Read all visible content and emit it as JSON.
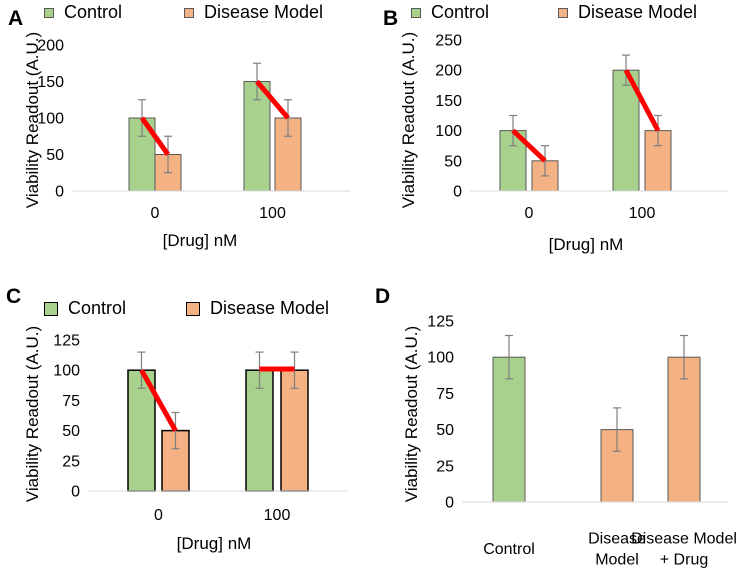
{
  "legend": {
    "control": "Control",
    "disease": "Disease Model"
  },
  "colors": {
    "control": "#a9d18e",
    "disease": "#f4b183",
    "line": "#ff0000",
    "error": "#7f7f7f"
  },
  "chart_data": [
    {
      "panel": "A",
      "type": "bar",
      "categories": [
        "0",
        "100"
      ],
      "series": [
        {
          "name": "Control",
          "values": [
            100,
            150
          ],
          "errors": [
            25,
            25
          ]
        },
        {
          "name": "Disease Model",
          "values": [
            50,
            100
          ],
          "errors": [
            25,
            25
          ]
        }
      ],
      "ylabel": "Viability Readout (A.U.)",
      "xlabel": "[Drug] nM",
      "ylim": [
        0,
        200
      ],
      "yticks": [
        "0",
        "50",
        "100",
        "150",
        "200"
      ],
      "red_lines": [
        [
          100,
          50
        ],
        [
          150,
          100
        ]
      ]
    },
    {
      "panel": "B",
      "type": "bar",
      "categories": [
        "0",
        "100"
      ],
      "series": [
        {
          "name": "Control",
          "values": [
            100,
            200
          ],
          "errors": [
            25,
            25
          ]
        },
        {
          "name": "Disease Model",
          "values": [
            50,
            100
          ],
          "errors": [
            25,
            25
          ]
        }
      ],
      "ylabel": "Viability Readout (A.U.)",
      "xlabel": "[Drug] nM",
      "ylim": [
        0,
        250
      ],
      "yticks": [
        "0",
        "50",
        "100",
        "150",
        "200",
        "250"
      ],
      "red_lines": [
        [
          100,
          50
        ],
        [
          200,
          100
        ]
      ]
    },
    {
      "panel": "C",
      "type": "bar",
      "categories": [
        "0",
        "100"
      ],
      "series": [
        {
          "name": "Control",
          "values": [
            100,
            100
          ],
          "errors": [
            15,
            15
          ]
        },
        {
          "name": "Disease Model",
          "values": [
            50,
            100
          ],
          "errors": [
            15,
            15
          ]
        }
      ],
      "ylabel": "Viability Readout (A.U.)",
      "xlabel": "[Drug] nM",
      "ylim": [
        0,
        125
      ],
      "yticks": [
        "0",
        "25",
        "50",
        "75",
        "100",
        "125"
      ],
      "red_lines": [
        [
          100,
          50
        ],
        [
          101,
          101
        ]
      ]
    },
    {
      "panel": "D",
      "type": "bar",
      "categories": [
        [
          "Control"
        ],
        [
          "Disease",
          "Model"
        ],
        [
          "Disease Model",
          "+ Drug"
        ]
      ],
      "values": [
        100,
        50,
        100
      ],
      "errors": [
        15,
        15,
        15
      ],
      "bar_series": [
        "control",
        "disease",
        "disease"
      ],
      "ylabel": "Viability Readout (A.U.)",
      "xlabel": "",
      "ylim": [
        0,
        125
      ],
      "yticks": [
        "0",
        "25",
        "50",
        "75",
        "100",
        "125"
      ]
    }
  ]
}
